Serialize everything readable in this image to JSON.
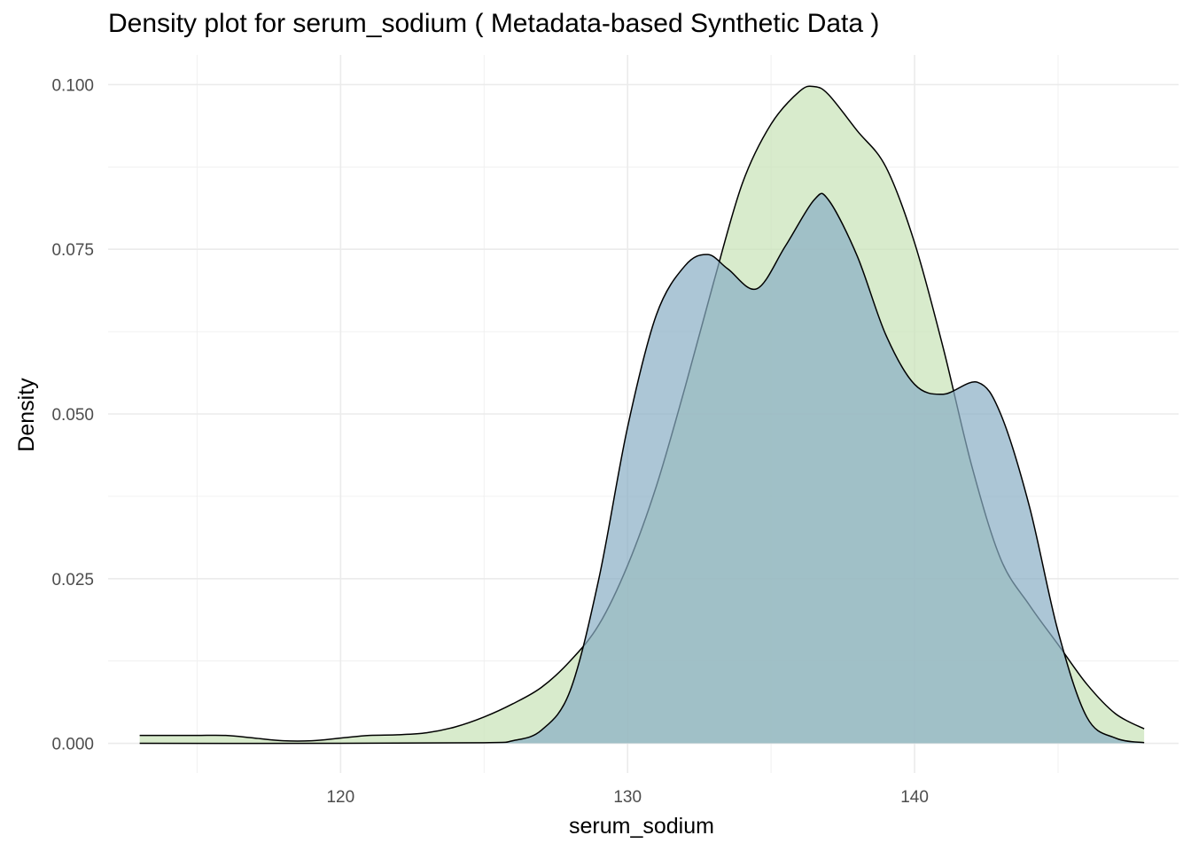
{
  "chart_data": {
    "type": "area",
    "title": "Density plot for serum_sodium ( Metadata-based Synthetic Data )",
    "xlabel": "serum_sodium",
    "ylabel": "Density",
    "xlim": [
      111.9,
      149.2
    ],
    "ylim": [
      -0.0045,
      0.1045
    ],
    "x_ticks": [
      {
        "value": 120,
        "label": "120"
      },
      {
        "value": 130,
        "label": "130"
      },
      {
        "value": 140,
        "label": "140"
      }
    ],
    "x_minor_ticks": [
      115,
      125,
      135,
      145
    ],
    "y_ticks": [
      {
        "value": 0.0,
        "label": "0.000"
      },
      {
        "value": 0.025,
        "label": "0.025"
      },
      {
        "value": 0.05,
        "label": "0.050"
      },
      {
        "value": 0.075,
        "label": "0.075"
      },
      {
        "value": 0.1,
        "label": "0.100"
      }
    ],
    "y_minor_ticks": [
      0.0125,
      0.0375,
      0.0625,
      0.0875
    ],
    "grid": true,
    "legend": "none",
    "series": [
      {
        "color": "#c7e3b6",
        "opacity": 0.7,
        "x": [
          113.0,
          114.0,
          115.0,
          116.0,
          117.0,
          118.0,
          119.0,
          120.0,
          121.0,
          122.0,
          123.0,
          124.0,
          125.0,
          126.0,
          127.0,
          128.0,
          129.0,
          130.0,
          131.0,
          132.0,
          133.0,
          134.0,
          135.0,
          136.0,
          136.5,
          137.0,
          138.0,
          139.0,
          140.0,
          141.0,
          142.0,
          143.0,
          144.0,
          145.0,
          146.0,
          147.0,
          148.0
        ],
        "y": [
          0.0012,
          0.0012,
          0.0012,
          0.0012,
          0.0008,
          0.0004,
          0.0004,
          0.0008,
          0.0012,
          0.0013,
          0.0016,
          0.0025,
          0.004,
          0.006,
          0.0085,
          0.0125,
          0.018,
          0.027,
          0.039,
          0.054,
          0.07,
          0.085,
          0.094,
          0.099,
          0.0997,
          0.0985,
          0.093,
          0.0875,
          0.076,
          0.06,
          0.042,
          0.028,
          0.021,
          0.015,
          0.009,
          0.0045,
          0.0022
        ]
      },
      {
        "color": "#89aec4",
        "opacity": 0.7,
        "x": [
          113.0,
          120.0,
          125.0,
          126.0,
          127.0,
          128.0,
          129.0,
          130.0,
          131.0,
          132.0,
          132.8,
          133.5,
          134.5,
          135.5,
          136.5,
          137.0,
          138.0,
          139.0,
          140.0,
          141.0,
          142.2,
          143.0,
          144.0,
          145.0,
          146.0,
          147.0,
          148.0
        ],
        "y": [
          0.0,
          0.0,
          0.0001,
          0.0004,
          0.002,
          0.008,
          0.025,
          0.048,
          0.065,
          0.0725,
          0.0742,
          0.072,
          0.069,
          0.0755,
          0.0825,
          0.0825,
          0.074,
          0.062,
          0.0545,
          0.053,
          0.0548,
          0.05,
          0.036,
          0.017,
          0.004,
          0.0008,
          0.0001
        ]
      }
    ]
  }
}
